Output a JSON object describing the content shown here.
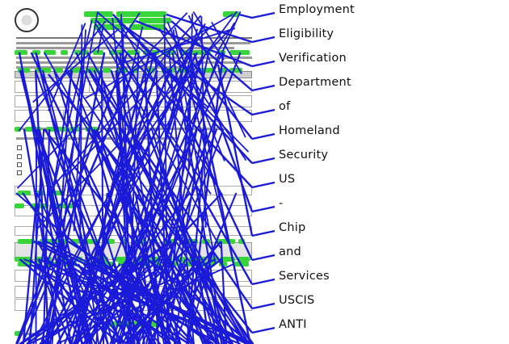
{
  "words": [
    "Employment",
    "Eligibility",
    "Verification",
    "Department",
    "of",
    "Homeland",
    "Security",
    "US",
    "-",
    "Chip",
    "and",
    "Services",
    "USCIS",
    "ANTI"
  ],
  "colors": {
    "leader_line": "#1a1ad8",
    "word_box": "#37d43a",
    "text": "#111111"
  }
}
